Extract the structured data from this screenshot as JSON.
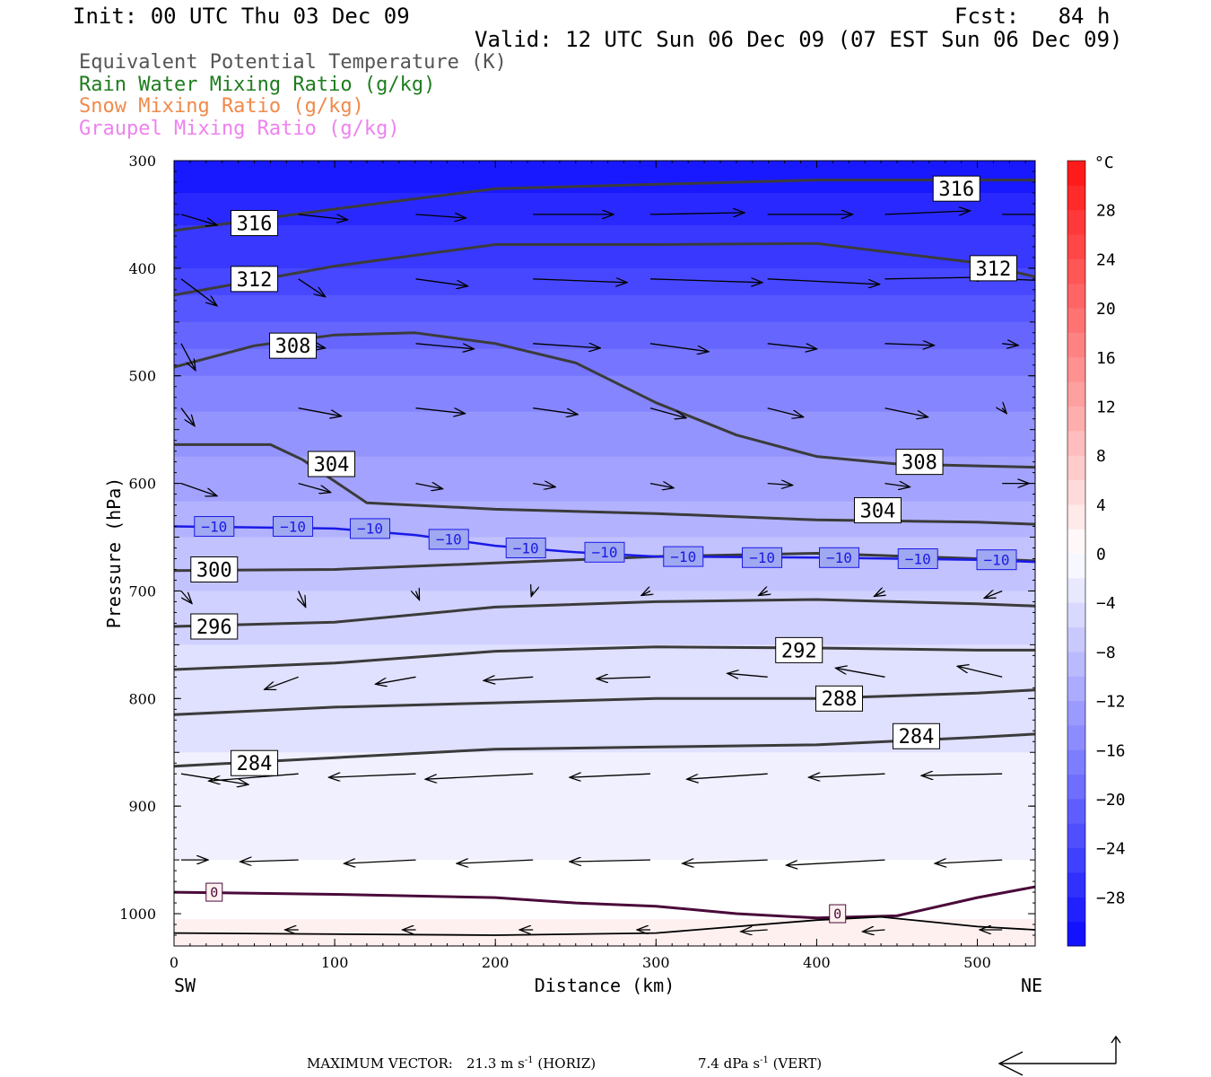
{
  "header": {
    "init": "Init: 00 UTC Thu 03 Dec 09",
    "fcst": "Fcst:   84 h",
    "valid": "Valid: 12 UTC Sun 06 Dec 09 (07 EST Sun 06 Dec 09)"
  },
  "legend": [
    {
      "text": "Equivalent Potential Temperature (K)",
      "color": "#555555"
    },
    {
      "text": "Rain Water Mixing Ratio (g/kg)",
      "color": "#1e7d1e"
    },
    {
      "text": "Snow Mixing Ratio (g/kg)",
      "color": "#f08a4b"
    },
    {
      "text": "Graupel Mixing Ratio (g/kg)",
      "color": "#ee82ee"
    }
  ],
  "footer": {
    "label": "MAXIMUM VECTOR:",
    "horiz_value": "21.3 m s",
    "horiz_unit": " (HORIZ)",
    "vert_value": "7.4 dPa s",
    "vert_unit": " (VERT)",
    "exponent": "-1"
  },
  "chart_data": {
    "type": "cross-section",
    "xlabel": "Distance (km)",
    "ylabel": "Pressure (hPa)",
    "xlim": [
      0,
      536
    ],
    "ylim": [
      1030,
      300
    ],
    "x_ticks": [
      "0",
      "100",
      "200",
      "300",
      "400",
      "500"
    ],
    "y_ticks": [
      "300",
      "400",
      "500",
      "600",
      "700",
      "800",
      "900",
      "1000"
    ],
    "left_end_label": "SW",
    "right_end_label": "NE",
    "colorbar": {
      "unit": "°C",
      "tick_labels": [
        "28",
        "24",
        "20",
        "16",
        "12",
        "8",
        "4",
        "0",
        "−4",
        "−8",
        "−12",
        "−16",
        "−20",
        "−24",
        "−28"
      ],
      "range": [
        -32,
        32
      ],
      "step": 2
    },
    "temperature_fill": [
      {
        "p": 300,
        "t": -31
      },
      {
        "p": 330,
        "t": -29
      },
      {
        "p": 360,
        "t": -27
      },
      {
        "p": 400,
        "t": -25
      },
      {
        "p": 450,
        "t": -21
      },
      {
        "p": 500,
        "t": -17
      },
      {
        "p": 550,
        "t": -14
      },
      {
        "p": 600,
        "t": -12
      },
      {
        "p": 650,
        "t": -9
      },
      {
        "p": 700,
        "t": -7
      },
      {
        "p": 750,
        "t": -5
      },
      {
        "p": 800,
        "t": -3.5
      },
      {
        "p": 900,
        "t": -2.5
      },
      {
        "p": 950,
        "t": -1
      },
      {
        "p": 980,
        "t": 0.5
      },
      {
        "p": 1030,
        "t": 1.5
      }
    ],
    "theta_e_contours": [
      {
        "label": "316",
        "points": [
          [
            0,
            365
          ],
          [
            100,
            345
          ],
          [
            200,
            326
          ],
          [
            300,
            322
          ],
          [
            400,
            318
          ],
          [
            500,
            318
          ],
          [
            536,
            318
          ]
        ],
        "label_at": [
          [
            50,
            358
          ],
          [
            487,
            326
          ]
        ]
      },
      {
        "label": "312",
        "points": [
          [
            0,
            425
          ],
          [
            100,
            398
          ],
          [
            200,
            378
          ],
          [
            300,
            378
          ],
          [
            400,
            377
          ],
          [
            500,
            395
          ],
          [
            536,
            408
          ]
        ],
        "label_at": [
          [
            50,
            410
          ],
          [
            510,
            400
          ]
        ]
      },
      {
        "label": "308",
        "points": [
          [
            0,
            492
          ],
          [
            50,
            472
          ],
          [
            100,
            462
          ],
          [
            150,
            460
          ],
          [
            200,
            470
          ],
          [
            250,
            488
          ],
          [
            300,
            525
          ],
          [
            350,
            555
          ],
          [
            400,
            575
          ],
          [
            450,
            582
          ],
          [
            536,
            585
          ]
        ],
        "label_at": [
          [
            74,
            472
          ],
          [
            464,
            580
          ]
        ]
      },
      {
        "label": "304",
        "points": [
          [
            0,
            564
          ],
          [
            60,
            564
          ],
          [
            80,
            578
          ],
          [
            120,
            618
          ],
          [
            200,
            624
          ],
          [
            300,
            628
          ],
          [
            400,
            634
          ],
          [
            500,
            636
          ],
          [
            536,
            638
          ]
        ],
        "label_at": [
          [
            98,
            582
          ],
          [
            438,
            625
          ]
        ]
      },
      {
        "label": "300",
        "points": [
          [
            0,
            681
          ],
          [
            100,
            680
          ],
          [
            200,
            674
          ],
          [
            300,
            668
          ],
          [
            400,
            665
          ],
          [
            500,
            670
          ],
          [
            536,
            672
          ]
        ],
        "label_at": [
          [
            25,
            680
          ]
        ]
      },
      {
        "label": "296",
        "points": [
          [
            0,
            733
          ],
          [
            100,
            729
          ],
          [
            200,
            715
          ],
          [
            300,
            710
          ],
          [
            400,
            708
          ],
          [
            500,
            712
          ],
          [
            536,
            714
          ]
        ],
        "label_at": [
          [
            25,
            733
          ]
        ]
      },
      {
        "label": "292",
        "points": [
          [
            0,
            773
          ],
          [
            100,
            767
          ],
          [
            200,
            756
          ],
          [
            300,
            752
          ],
          [
            400,
            753
          ],
          [
            500,
            755
          ],
          [
            536,
            755
          ]
        ],
        "label_at": [
          [
            389,
            755
          ]
        ]
      },
      {
        "label": "288",
        "points": [
          [
            0,
            815
          ],
          [
            100,
            808
          ],
          [
            200,
            804
          ],
          [
            300,
            800
          ],
          [
            400,
            800
          ],
          [
            500,
            795
          ],
          [
            536,
            792
          ]
        ],
        "label_at": [
          [
            414,
            800
          ]
        ]
      },
      {
        "label": "284",
        "points": [
          [
            0,
            863
          ],
          [
            100,
            855
          ],
          [
            200,
            847
          ],
          [
            300,
            845
          ],
          [
            400,
            843
          ],
          [
            500,
            836
          ],
          [
            536,
            833
          ]
        ],
        "label_at": [
          [
            50,
            860
          ],
          [
            462,
            835
          ]
        ]
      }
    ],
    "temp_contour_minus10": {
      "label": "−10",
      "points": [
        [
          0,
          640
        ],
        [
          100,
          642
        ],
        [
          150,
          648
        ],
        [
          200,
          658
        ],
        [
          250,
          664
        ],
        [
          300,
          668
        ],
        [
          400,
          669
        ],
        [
          500,
          671
        ],
        [
          536,
          673
        ]
      ],
      "label_at": [
        [
          25,
          640
        ],
        [
          74,
          640
        ],
        [
          122,
          642
        ],
        [
          171,
          652
        ],
        [
          219,
          660
        ],
        [
          268,
          664
        ],
        [
          317,
          668
        ],
        [
          366,
          669
        ],
        [
          414,
          669
        ],
        [
          463,
          670
        ],
        [
          512,
          671
        ]
      ]
    },
    "zero_contour": {
      "label": "0",
      "points": [
        [
          0,
          980
        ],
        [
          100,
          982
        ],
        [
          200,
          985
        ],
        [
          250,
          990
        ],
        [
          300,
          993
        ],
        [
          350,
          1000
        ],
        [
          400,
          1004
        ],
        [
          450,
          1002
        ],
        [
          500,
          985
        ],
        [
          536,
          975
        ]
      ],
      "label_at": [
        [
          25,
          980
        ],
        [
          413,
          1000
        ]
      ]
    },
    "surface_contour": {
      "points": [
        [
          0,
          1018
        ],
        [
          200,
          1020
        ],
        [
          300,
          1018
        ],
        [
          400,
          1006
        ],
        [
          440,
          1003
        ],
        [
          500,
          1012
        ],
        [
          536,
          1015
        ]
      ]
    },
    "wind_vectors": [
      {
        "x": 0,
        "p": 350,
        "u": 40,
        "v": -12
      },
      {
        "x": 73,
        "p": 350,
        "u": 55,
        "v": -6
      },
      {
        "x": 146,
        "p": 350,
        "u": 56,
        "v": -4
      },
      {
        "x": 219,
        "p": 350,
        "u": 90,
        "v": 0
      },
      {
        "x": 292,
        "p": 350,
        "u": 105,
        "v": 2
      },
      {
        "x": 365,
        "p": 350,
        "u": 95,
        "v": 0
      },
      {
        "x": 438,
        "p": 350,
        "u": 95,
        "v": 4
      },
      {
        "x": 511,
        "p": 350,
        "u": 60,
        "v": 0
      },
      {
        "x": 0,
        "p": 410,
        "u": 40,
        "v": -30
      },
      {
        "x": 73,
        "p": 410,
        "u": 30,
        "v": -20
      },
      {
        "x": 146,
        "p": 410,
        "u": 58,
        "v": -8
      },
      {
        "x": 219,
        "p": 410,
        "u": 105,
        "v": -4
      },
      {
        "x": 292,
        "p": 410,
        "u": 125,
        "v": -4
      },
      {
        "x": 365,
        "p": 410,
        "u": 125,
        "v": -6
      },
      {
        "x": 438,
        "p": 410,
        "u": 115,
        "v": 2
      },
      {
        "x": 511,
        "p": 410,
        "u": 50,
        "v": -2
      },
      {
        "x": 0,
        "p": 470,
        "u": 16,
        "v": -30
      },
      {
        "x": 73,
        "p": 470,
        "u": 30,
        "v": -5
      },
      {
        "x": 146,
        "p": 470,
        "u": 65,
        "v": -6
      },
      {
        "x": 219,
        "p": 470,
        "u": 75,
        "v": -5
      },
      {
        "x": 292,
        "p": 470,
        "u": 65,
        "v": -9
      },
      {
        "x": 365,
        "p": 470,
        "u": 55,
        "v": -6
      },
      {
        "x": 438,
        "p": 470,
        "u": 55,
        "v": -2
      },
      {
        "x": 511,
        "p": 470,
        "u": 18,
        "v": -2
      },
      {
        "x": 0,
        "p": 530,
        "u": 15,
        "v": -20
      },
      {
        "x": 73,
        "p": 530,
        "u": 48,
        "v": -9
      },
      {
        "x": 146,
        "p": 530,
        "u": 55,
        "v": -6
      },
      {
        "x": 219,
        "p": 530,
        "u": 50,
        "v": -7
      },
      {
        "x": 292,
        "p": 530,
        "u": 40,
        "v": -11
      },
      {
        "x": 365,
        "p": 530,
        "u": 40,
        "v": -10
      },
      {
        "x": 438,
        "p": 530,
        "u": 48,
        "v": -10
      },
      {
        "x": 511,
        "p": 530,
        "u": 5,
        "v": -6
      },
      {
        "x": 0,
        "p": 600,
        "u": 40,
        "v": -14
      },
      {
        "x": 73,
        "p": 600,
        "u": 36,
        "v": -10
      },
      {
        "x": 146,
        "p": 600,
        "u": 30,
        "v": -6
      },
      {
        "x": 219,
        "p": 600,
        "u": 25,
        "v": -4
      },
      {
        "x": 292,
        "p": 600,
        "u": 26,
        "v": -5
      },
      {
        "x": 365,
        "p": 600,
        "u": 28,
        "v": -2
      },
      {
        "x": 438,
        "p": 600,
        "u": 28,
        "v": -4
      },
      {
        "x": 511,
        "p": 600,
        "u": 30,
        "v": 0
      },
      {
        "x": 0,
        "p": 700,
        "u": 12,
        "v": -14
      },
      {
        "x": 73,
        "p": 700,
        "u": 8,
        "v": -18
      },
      {
        "x": 146,
        "p": 700,
        "u": 4,
        "v": -10
      },
      {
        "x": 219,
        "p": 700,
        "u": -2,
        "v": -6
      },
      {
        "x": 292,
        "p": 700,
        "u": -10,
        "v": -5
      },
      {
        "x": 365,
        "p": 700,
        "u": -10,
        "v": -5
      },
      {
        "x": 438,
        "p": 700,
        "u": -12,
        "v": -6
      },
      {
        "x": 511,
        "p": 700,
        "u": -20,
        "v": -8
      },
      {
        "x": 73,
        "p": 780,
        "u": -38,
        "v": -14
      },
      {
        "x": 146,
        "p": 780,
        "u": -45,
        "v": -8
      },
      {
        "x": 219,
        "p": 780,
        "u": -55,
        "v": -4
      },
      {
        "x": 292,
        "p": 780,
        "u": -60,
        "v": -2
      },
      {
        "x": 365,
        "p": 780,
        "u": -45,
        "v": 4
      },
      {
        "x": 438,
        "p": 780,
        "u": -55,
        "v": 10
      },
      {
        "x": 511,
        "p": 780,
        "u": -50,
        "v": 12
      },
      {
        "x": 0,
        "p": 870,
        "u": 75,
        "v": -12
      },
      {
        "x": 73,
        "p": 870,
        "u": -100,
        "v": -8
      },
      {
        "x": 146,
        "p": 870,
        "u": -97,
        "v": -4
      },
      {
        "x": 219,
        "p": 870,
        "u": -120,
        "v": -6
      },
      {
        "x": 292,
        "p": 870,
        "u": -90,
        "v": -4
      },
      {
        "x": 365,
        "p": 870,
        "u": -90,
        "v": -6
      },
      {
        "x": 438,
        "p": 870,
        "u": -85,
        "v": -4
      },
      {
        "x": 511,
        "p": 870,
        "u": -90,
        "v": -2
      },
      {
        "x": 0,
        "p": 950,
        "u": 30,
        "v": 0
      },
      {
        "x": 73,
        "p": 950,
        "u": -65,
        "v": -2
      },
      {
        "x": 146,
        "p": 950,
        "u": -80,
        "v": -4
      },
      {
        "x": 219,
        "p": 950,
        "u": -85,
        "v": -4
      },
      {
        "x": 292,
        "p": 950,
        "u": -90,
        "v": -2
      },
      {
        "x": 365,
        "p": 950,
        "u": -95,
        "v": -4
      },
      {
        "x": 438,
        "p": 950,
        "u": -110,
        "v": -6
      },
      {
        "x": 511,
        "p": 950,
        "u": -75,
        "v": -4
      },
      {
        "x": 73,
        "p": 1015,
        "u": -15,
        "v": 0
      },
      {
        "x": 146,
        "p": 1015,
        "u": -15,
        "v": 0
      },
      {
        "x": 219,
        "p": 1015,
        "u": -15,
        "v": 0
      },
      {
        "x": 292,
        "p": 1015,
        "u": -15,
        "v": 0
      },
      {
        "x": 365,
        "p": 1015,
        "u": -30,
        "v": -2
      },
      {
        "x": 438,
        "p": 1015,
        "u": -25,
        "v": -2
      },
      {
        "x": 511,
        "p": 1015,
        "u": -25,
        "v": 0
      }
    ]
  },
  "colors": {
    "theta_e_line": "#3b3b3b",
    "minus10_line": "#1a1ae6",
    "zero_line": "#4a0a3a",
    "arrow": "#000000"
  }
}
